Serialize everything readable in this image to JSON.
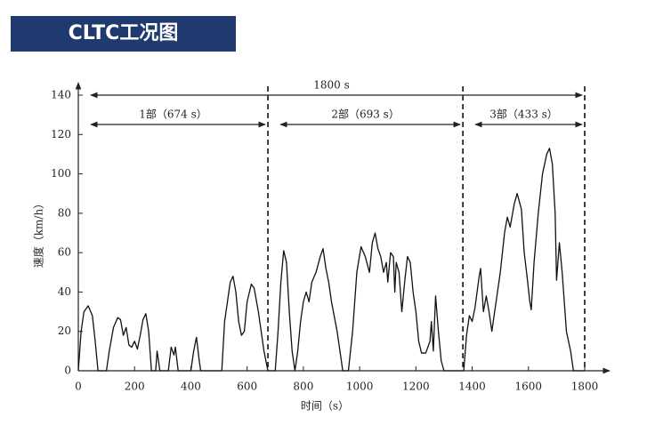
{
  "header": {
    "title": "CLTC工况图"
  },
  "chart_data": {
    "type": "line",
    "x_label": "时间（s）",
    "y_label": "速度（km/h）",
    "xlim": [
      0,
      1800
    ],
    "ylim": [
      0,
      140
    ],
    "xticks": [
      0,
      200,
      400,
      600,
      800,
      1000,
      1200,
      1400,
      1600,
      1800
    ],
    "yticks": [
      0,
      20,
      40,
      60,
      80,
      100,
      120,
      140
    ],
    "color": "#111111",
    "spans": [
      {
        "label": "1800 s",
        "start": 0,
        "end": 1800
      },
      {
        "label": "1部（674 s）",
        "start": 0,
        "end": 674
      },
      {
        "label": "2部（693 s）",
        "start": 674,
        "end": 1367
      },
      {
        "label": "3部（433 s）",
        "start": 1367,
        "end": 1800
      }
    ],
    "dividers": [
      674,
      1367,
      1800
    ],
    "x": [
      0,
      10,
      20,
      35,
      50,
      60,
      70,
      100,
      110,
      125,
      140,
      150,
      160,
      170,
      180,
      190,
      200,
      210,
      220,
      230,
      240,
      250,
      260,
      275,
      280,
      290,
      320,
      330,
      340,
      345,
      355,
      400,
      410,
      420,
      430,
      435,
      510,
      520,
      540,
      550,
      560,
      570,
      580,
      590,
      600,
      615,
      625,
      640,
      660,
      674,
      700,
      710,
      720,
      730,
      740,
      750,
      760,
      770,
      780,
      790,
      800,
      810,
      820,
      830,
      845,
      860,
      870,
      880,
      890,
      900,
      920,
      940,
      960,
      975,
      990,
      1005,
      1020,
      1035,
      1045,
      1055,
      1065,
      1075,
      1085,
      1095,
      1100,
      1110,
      1120,
      1125,
      1130,
      1140,
      1150,
      1160,
      1170,
      1180,
      1190,
      1200,
      1210,
      1220,
      1235,
      1250,
      1255,
      1262,
      1270,
      1280,
      1290,
      1300,
      1370,
      1380,
      1390,
      1400,
      1410,
      1425,
      1430,
      1440,
      1450,
      1460,
      1470,
      1480,
      1500,
      1515,
      1525,
      1535,
      1550,
      1560,
      1575,
      1585,
      1595,
      1605,
      1610,
      1620,
      1635,
      1650,
      1665,
      1675,
      1685,
      1695,
      1700,
      1710,
      1720,
      1735,
      1750,
      1760,
      1800
    ],
    "values": [
      0,
      20,
      30,
      33,
      28,
      15,
      0,
      0,
      10,
      22,
      27,
      26,
      18,
      22,
      13,
      12,
      15,
      11,
      18,
      26,
      29,
      20,
      0,
      0,
      10,
      0,
      0,
      12,
      8,
      12,
      0,
      0,
      10,
      17,
      5,
      0,
      0,
      25,
      45,
      48,
      40,
      25,
      18,
      20,
      35,
      44,
      42,
      30,
      10,
      0,
      0,
      20,
      45,
      61,
      55,
      30,
      10,
      0,
      10,
      25,
      35,
      40,
      35,
      45,
      50,
      58,
      62,
      52,
      45,
      35,
      20,
      0,
      0,
      20,
      50,
      63,
      58,
      50,
      65,
      70,
      62,
      58,
      50,
      55,
      45,
      60,
      58,
      40,
      55,
      50,
      30,
      45,
      58,
      55,
      40,
      30,
      15,
      9,
      9,
      15,
      25,
      10,
      38,
      20,
      5,
      0,
      0,
      18,
      28,
      25,
      32,
      48,
      52,
      30,
      38,
      30,
      20,
      30,
      50,
      70,
      78,
      73,
      85,
      90,
      82,
      60,
      48,
      35,
      31,
      55,
      80,
      100,
      110,
      113,
      105,
      80,
      46,
      65,
      50,
      20,
      10,
      0,
      0
    ]
  }
}
